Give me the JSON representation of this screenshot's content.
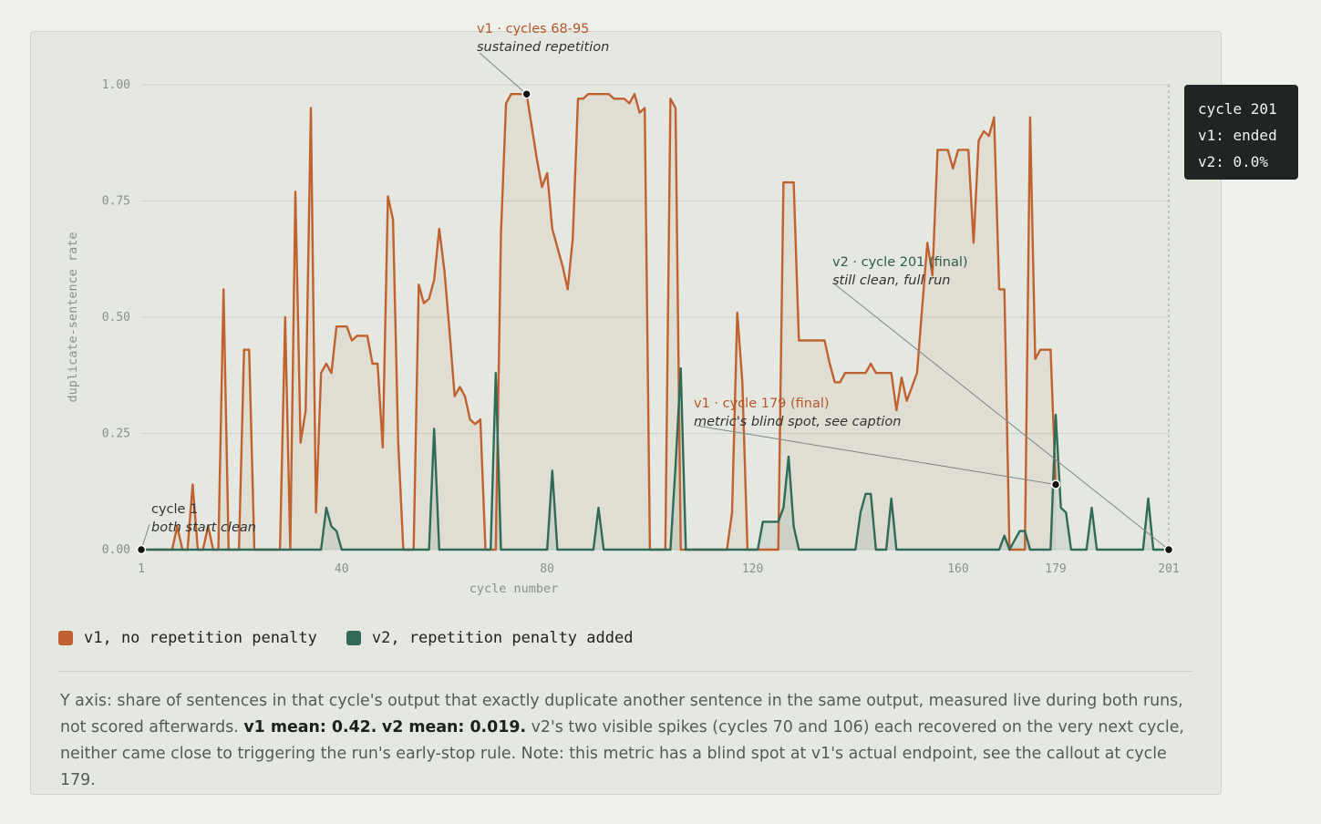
{
  "chart_data": {
    "type": "line",
    "xlabel": "cycle number",
    "ylabel": "duplicate-sentence rate",
    "xlim": [
      1,
      201
    ],
    "ylim": [
      0,
      1
    ],
    "x_ticks": [
      1,
      40,
      80,
      120,
      160,
      179,
      201
    ],
    "y_ticks": [
      "0.00",
      "0.25",
      "0.50",
      "0.75",
      "1.00"
    ],
    "grid": "horizontal",
    "legend_position": "bottom-left",
    "series": [
      {
        "name": "v1, no repetition penalty",
        "color": "#c0622f",
        "points": [
          [
            1,
            0
          ],
          [
            7,
            0
          ],
          [
            8,
            0.05
          ],
          [
            9,
            0
          ],
          [
            10,
            0
          ],
          [
            11,
            0.14
          ],
          [
            12,
            0
          ],
          [
            13,
            0
          ],
          [
            14,
            0.05
          ],
          [
            15,
            0
          ],
          [
            16,
            0
          ],
          [
            17,
            0.56
          ],
          [
            18,
            0
          ],
          [
            20,
            0
          ],
          [
            21,
            0.43
          ],
          [
            22,
            0.43
          ],
          [
            23,
            0
          ],
          [
            27,
            0
          ],
          [
            28,
            0
          ],
          [
            29,
            0.5
          ],
          [
            30,
            0
          ],
          [
            31,
            0.77
          ],
          [
            32,
            0.23
          ],
          [
            33,
            0.3
          ],
          [
            34,
            0.95
          ],
          [
            35,
            0.08
          ],
          [
            36,
            0.38
          ],
          [
            37,
            0.4
          ],
          [
            38,
            0.38
          ],
          [
            39,
            0.48
          ],
          [
            40,
            0.48
          ],
          [
            41,
            0.48
          ],
          [
            42,
            0.45
          ],
          [
            43,
            0.46
          ],
          [
            44,
            0.46
          ],
          [
            45,
            0.46
          ],
          [
            46,
            0.4
          ],
          [
            47,
            0.4
          ],
          [
            48,
            0.22
          ],
          [
            49,
            0.76
          ],
          [
            50,
            0.71
          ],
          [
            51,
            0.23
          ],
          [
            52,
            0
          ],
          [
            54,
            0
          ],
          [
            55,
            0.57
          ],
          [
            56,
            0.53
          ],
          [
            57,
            0.54
          ],
          [
            58,
            0.58
          ],
          [
            59,
            0.69
          ],
          [
            60,
            0.6
          ],
          [
            61,
            0.47
          ],
          [
            62,
            0.33
          ],
          [
            63,
            0.35
          ],
          [
            64,
            0.33
          ],
          [
            65,
            0.28
          ],
          [
            66,
            0.27
          ],
          [
            67,
            0.28
          ],
          [
            68,
            0
          ],
          [
            70,
            0
          ],
          [
            71,
            0.68
          ],
          [
            72,
            0.96
          ],
          [
            73,
            0.98
          ],
          [
            74,
            0.98
          ],
          [
            75,
            0.98
          ],
          [
            76,
            0.98
          ],
          [
            77,
            0.91
          ],
          [
            78,
            0.84
          ],
          [
            79,
            0.78
          ],
          [
            80,
            0.81
          ],
          [
            81,
            0.69
          ],
          [
            82,
            0.65
          ],
          [
            83,
            0.61
          ],
          [
            84,
            0.56
          ],
          [
            85,
            0.67
          ],
          [
            86,
            0.97
          ],
          [
            87,
            0.97
          ],
          [
            88,
            0.98
          ],
          [
            89,
            0.98
          ],
          [
            90,
            0.98
          ],
          [
            91,
            0.98
          ],
          [
            92,
            0.98
          ],
          [
            93,
            0.97
          ],
          [
            94,
            0.97
          ],
          [
            95,
            0.97
          ],
          [
            96,
            0.96
          ],
          [
            97,
            0.98
          ],
          [
            98,
            0.94
          ],
          [
            99,
            0.95
          ],
          [
            100,
            0
          ],
          [
            103,
            0
          ],
          [
            104,
            0.97
          ],
          [
            105,
            0.95
          ],
          [
            106,
            0
          ],
          [
            110,
            0
          ],
          [
            115,
            0
          ],
          [
            116,
            0.08
          ],
          [
            117,
            0.51
          ],
          [
            118,
            0.36
          ],
          [
            119,
            0
          ],
          [
            122,
            0
          ],
          [
            123,
            0
          ],
          [
            124,
            0
          ],
          [
            125,
            0
          ],
          [
            126,
            0.79
          ],
          [
            127,
            0.79
          ],
          [
            128,
            0.79
          ],
          [
            129,
            0.45
          ],
          [
            130,
            0.45
          ],
          [
            131,
            0.45
          ],
          [
            132,
            0.45
          ],
          [
            133,
            0.45
          ],
          [
            134,
            0.45
          ],
          [
            135,
            0.4
          ],
          [
            136,
            0.36
          ],
          [
            137,
            0.36
          ],
          [
            138,
            0.38
          ],
          [
            139,
            0.38
          ],
          [
            140,
            0.38
          ],
          [
            141,
            0.38
          ],
          [
            142,
            0.38
          ],
          [
            143,
            0.4
          ],
          [
            144,
            0.38
          ],
          [
            145,
            0.38
          ],
          [
            146,
            0.38
          ],
          [
            147,
            0.38
          ],
          [
            148,
            0.3
          ],
          [
            149,
            0.37
          ],
          [
            150,
            0.32
          ],
          [
            151,
            0.35
          ],
          [
            152,
            0.38
          ],
          [
            153,
            0.52
          ],
          [
            154,
            0.66
          ],
          [
            155,
            0.59
          ],
          [
            156,
            0.86
          ],
          [
            157,
            0.86
          ],
          [
            158,
            0.86
          ],
          [
            159,
            0.82
          ],
          [
            160,
            0.86
          ],
          [
            161,
            0.86
          ],
          [
            162,
            0.86
          ],
          [
            163,
            0.66
          ],
          [
            164,
            0.88
          ],
          [
            165,
            0.9
          ],
          [
            166,
            0.89
          ],
          [
            167,
            0.93
          ],
          [
            168,
            0.56
          ],
          [
            169,
            0.56
          ],
          [
            170,
            0
          ],
          [
            172,
            0
          ],
          [
            173,
            0
          ],
          [
            174,
            0.93
          ],
          [
            175,
            0.41
          ],
          [
            176,
            0.43
          ],
          [
            177,
            0.43
          ],
          [
            178,
            0.43
          ],
          [
            179,
            0.14
          ]
        ]
      },
      {
        "name": "v2, repetition penalty added",
        "color": "#2f6b58",
        "points": [
          [
            1,
            0
          ],
          [
            35,
            0
          ],
          [
            36,
            0
          ],
          [
            37,
            0.09
          ],
          [
            38,
            0.05
          ],
          [
            39,
            0.04
          ],
          [
            40,
            0
          ],
          [
            57,
            0
          ],
          [
            58,
            0.26
          ],
          [
            59,
            0
          ],
          [
            69,
            0
          ],
          [
            70,
            0.38
          ],
          [
            71,
            0
          ],
          [
            80,
            0
          ],
          [
            81,
            0.17
          ],
          [
            82,
            0
          ],
          [
            89,
            0
          ],
          [
            90,
            0.09
          ],
          [
            91,
            0
          ],
          [
            104,
            0
          ],
          [
            105,
            0.18
          ],
          [
            106,
            0.39
          ],
          [
            107,
            0
          ],
          [
            113,
            0
          ],
          [
            114,
            0
          ],
          [
            121,
            0
          ],
          [
            122,
            0.06
          ],
          [
            123,
            0.06
          ],
          [
            124,
            0.06
          ],
          [
            125,
            0.06
          ],
          [
            126,
            0.09
          ],
          [
            127,
            0.2
          ],
          [
            128,
            0.05
          ],
          [
            129,
            0
          ],
          [
            140,
            0
          ],
          [
            141,
            0.08
          ],
          [
            142,
            0.12
          ],
          [
            143,
            0.12
          ],
          [
            144,
            0
          ],
          [
            146,
            0
          ],
          [
            147,
            0.11
          ],
          [
            148,
            0
          ],
          [
            155,
            0
          ],
          [
            159,
            0
          ],
          [
            168,
            0
          ],
          [
            169,
            0.03
          ],
          [
            170,
            0
          ],
          [
            171,
            0.02
          ],
          [
            172,
            0.04
          ],
          [
            173,
            0.04
          ],
          [
            174,
            0
          ],
          [
            177,
            0
          ],
          [
            178,
            0
          ],
          [
            179,
            0.29
          ],
          [
            180,
            0.09
          ],
          [
            181,
            0.08
          ],
          [
            182,
            0
          ],
          [
            185,
            0
          ],
          [
            186,
            0.09
          ],
          [
            187,
            0
          ],
          [
            196,
            0
          ],
          [
            197,
            0.11
          ],
          [
            198,
            0
          ],
          [
            201,
            0
          ]
        ]
      }
    ],
    "markers": [
      {
        "x": 1,
        "y": 0
      },
      {
        "x": 76,
        "y": 0.98
      },
      {
        "x": 179,
        "y": 0.14
      },
      {
        "x": 201,
        "y": 0
      }
    ],
    "annotations": [
      {
        "title": "cycle 1",
        "subtitle": "both start clean",
        "series": "neutral",
        "at": [
          1,
          0
        ]
      },
      {
        "title": "v1 · cycles 68-95",
        "subtitle": "sustained repetition",
        "series": "v1",
        "at": [
          76,
          0.98
        ]
      },
      {
        "title": "v2 · cycle 201 (final)",
        "subtitle": "still clean, full run",
        "series": "v2",
        "at": [
          201,
          0
        ]
      },
      {
        "title": "v1 · cycle 179 (final)",
        "subtitle": "metric's blind spot, see caption",
        "series": "v1",
        "at": [
          179,
          0.14
        ]
      }
    ],
    "hover_cycle": 201
  },
  "tooltip": {
    "line1": "cycle 201",
    "line2": "v1: ended",
    "line3": "v2: 0.0%"
  },
  "legend": {
    "v1_label": "v1, no repetition penalty",
    "v1_color": "#c0622f",
    "v2_label": "v2, repetition penalty added",
    "v2_color": "#2f6b58"
  },
  "caption": {
    "part1": "Y axis: share of sentences in that cycle's output that exactly duplicate another sentence in the same output, measured live during both runs, not scored afterwards. ",
    "v1_mean": "v1 mean: 0.42.",
    "v2_mean": "v2 mean: 0.019.",
    "part2": " v2's two visible spikes (cycles 70 and 106) each recovered on the very next cycle, neither came close to triggering the run's early-stop rule. Note: this metric has a blind spot at v1's actual endpoint, see the callout at cycle 179."
  }
}
